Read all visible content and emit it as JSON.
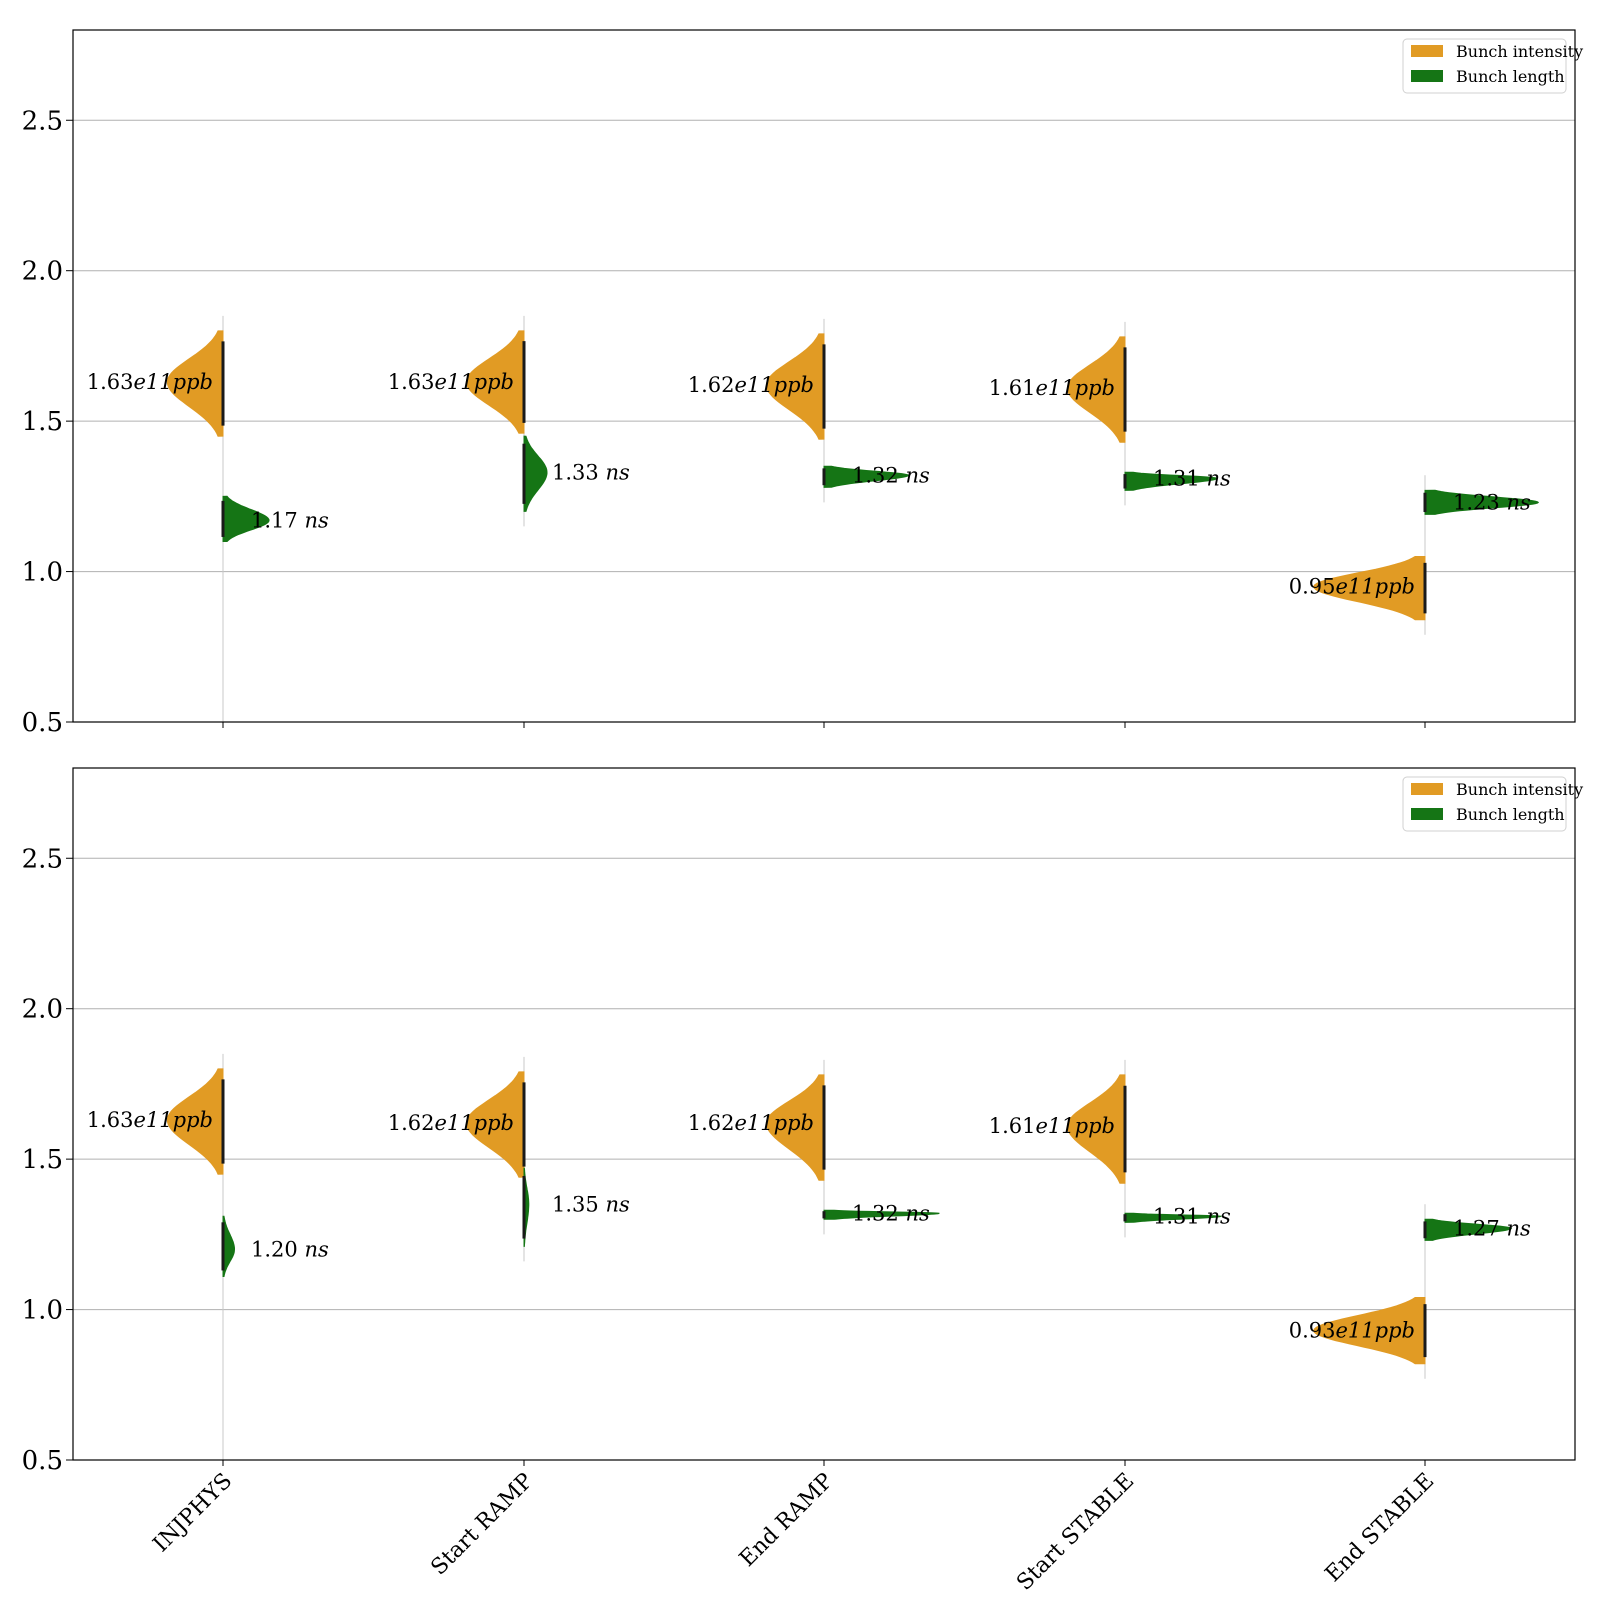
{
  "chart_data": [
    {
      "type": "violin",
      "categories": [
        "INJPHYS",
        "Start RAMP",
        "End RAMP",
        "Start STABLE",
        "End STABLE"
      ],
      "ylim": [
        0.5,
        2.8
      ],
      "yticks": [
        "0.5",
        "1.0",
        "1.5",
        "2.0",
        "2.5"
      ],
      "grid": "horizontal",
      "legend": {
        "placement": "top-right",
        "entries": [
          "Bunch intensity",
          "Bunch length"
        ]
      },
      "colors": {
        "intensity": "#e19b24",
        "length": "#157515"
      },
      "series": [
        {
          "name": "Bunch intensity",
          "side": "left",
          "centers": [
            1.63,
            1.63,
            1.62,
            1.61,
            0.95
          ],
          "ranges": [
            [
              1.45,
              1.8
            ],
            [
              1.46,
              1.8
            ],
            [
              1.44,
              1.79
            ],
            [
              1.43,
              1.78
            ],
            [
              0.84,
              1.05
            ]
          ],
          "widths": [
            0.58,
            0.6,
            0.6,
            0.6,
            1.16
          ],
          "labels_before": [
            "1.63",
            "1.63",
            "1.62",
            "1.61",
            "0.95"
          ],
          "labels_after": [
            "e11",
            "e11",
            "e11",
            "e11",
            "e11"
          ],
          "labels_unit": [
            "ppb",
            "ppb",
            "ppb",
            "ppb",
            "ppb"
          ]
        },
        {
          "name": "Bunch length",
          "side": "right",
          "centers": [
            1.17,
            1.33,
            1.32,
            1.31,
            1.23
          ],
          "ranges": [
            [
              1.1,
              1.25
            ],
            [
              1.2,
              1.45
            ],
            [
              1.28,
              1.35
            ],
            [
              1.27,
              1.33
            ],
            [
              1.19,
              1.27
            ]
          ],
          "widths": [
            0.48,
            0.24,
            0.88,
            0.96,
            1.18
          ],
          "labels_before": [
            "1.17 ",
            "1.33 ",
            "1.32 ",
            "1.31 ",
            "1.23 "
          ],
          "labels_unit": [
            "ns",
            "ns",
            "ns",
            "ns",
            "ns"
          ]
        }
      ]
    },
    {
      "type": "violin",
      "categories": [
        "INJPHYS",
        "Start RAMP",
        "End RAMP",
        "Start STABLE",
        "End STABLE"
      ],
      "ylim": [
        0.5,
        2.8
      ],
      "yticks": [
        "0.5",
        "1.0",
        "1.5",
        "2.0",
        "2.5"
      ],
      "grid": "horizontal",
      "legend": {
        "placement": "top-right",
        "entries": [
          "Bunch intensity",
          "Bunch length"
        ]
      },
      "colors": {
        "intensity": "#e19b24",
        "length": "#157515"
      },
      "series": [
        {
          "name": "Bunch intensity",
          "side": "left",
          "centers": [
            1.63,
            1.62,
            1.62,
            1.61,
            0.93
          ],
          "ranges": [
            [
              1.45,
              1.8
            ],
            [
              1.44,
              1.79
            ],
            [
              1.43,
              1.78
            ],
            [
              1.42,
              1.78
            ],
            [
              0.82,
              1.04
            ]
          ],
          "widths": [
            0.58,
            0.6,
            0.6,
            0.6,
            1.16
          ],
          "labels_before": [
            "1.63",
            "1.62",
            "1.62",
            "1.61",
            "0.93"
          ],
          "labels_after": [
            "e11",
            "e11",
            "e11",
            "e11",
            "e11"
          ],
          "labels_unit": [
            "ppb",
            "ppb",
            "ppb",
            "ppb",
            "ppb"
          ]
        },
        {
          "name": "Bunch length",
          "side": "right",
          "centers": [
            1.2,
            1.35,
            1.32,
            1.31,
            1.27
          ],
          "ranges": [
            [
              1.11,
              1.31
            ],
            [
              1.21,
              1.47
            ],
            [
              1.3,
              1.33
            ],
            [
              1.29,
              1.32
            ],
            [
              1.23,
              1.3
            ]
          ],
          "widths": [
            0.12,
            0.05,
            1.2,
            1.0,
            0.9
          ],
          "labels_before": [
            "1.20 ",
            "1.35 ",
            "1.32 ",
            "1.31 ",
            "1.27 "
          ],
          "labels_unit": [
            "ns",
            "ns",
            "ns",
            "ns",
            "ns"
          ]
        }
      ]
    }
  ]
}
